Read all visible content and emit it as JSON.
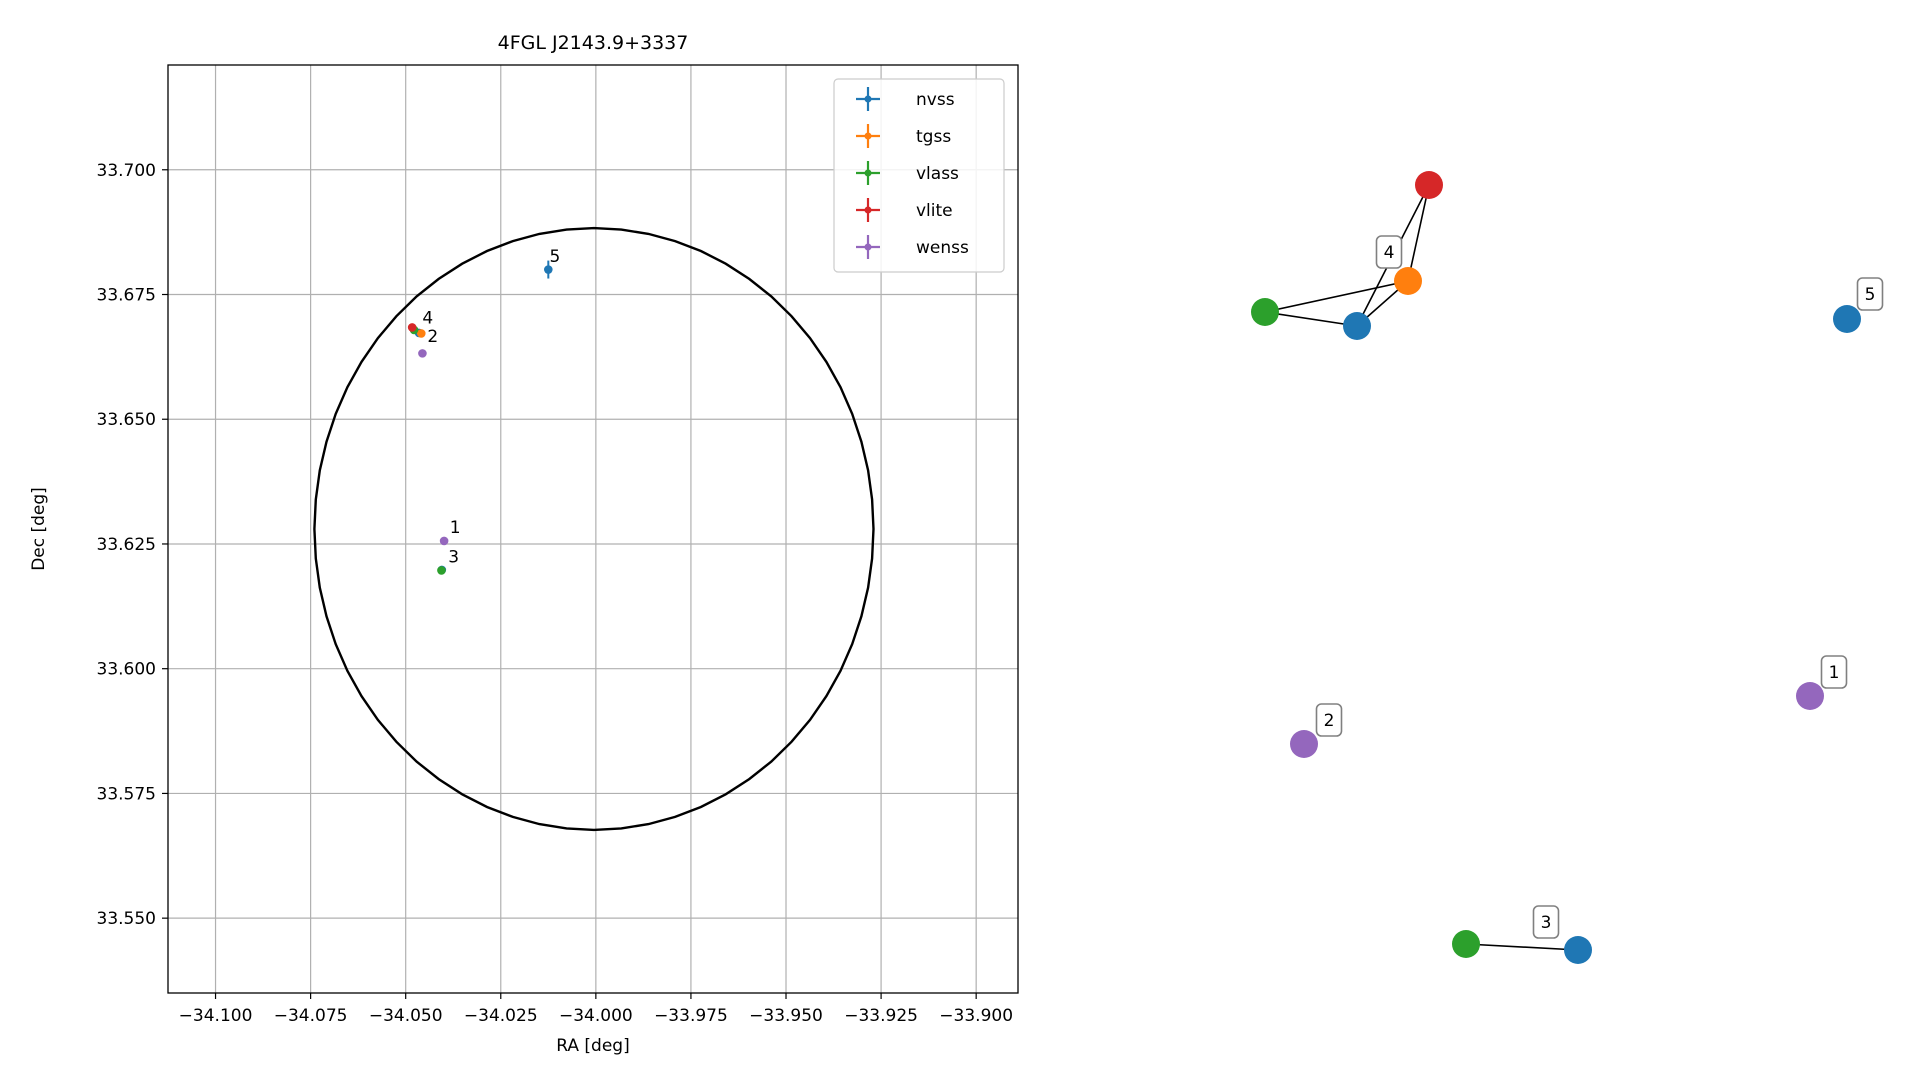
{
  "chart_data": [
    {
      "type": "scatter",
      "title": "4FGL J2143.9+3337",
      "xlabel": "RA [deg]",
      "ylabel": "Dec [deg]",
      "xlim": [
        -34.1125,
        -33.889
      ],
      "ylim": [
        33.535,
        33.721
      ],
      "xticks": [
        -34.1,
        -34.075,
        -34.05,
        -34.025,
        -34.0,
        -33.975,
        -33.95,
        -33.925,
        -33.9
      ],
      "xtick_labels": [
        "−34.100",
        "−34.075",
        "−34.050",
        "−34.025",
        "−34.000",
        "−33.975",
        "−33.950",
        "−33.925",
        "−33.900"
      ],
      "yticks": [
        33.55,
        33.575,
        33.6,
        33.625,
        33.65,
        33.675,
        33.7
      ],
      "ytick_labels": [
        "33.550",
        "33.575",
        "33.600",
        "33.625",
        "33.650",
        "33.675",
        "33.700"
      ],
      "grid": true,
      "legend_placement": "upper-right",
      "ellipse": {
        "center": [
          -34.0005,
          33.628
        ],
        "semi_axis_ra": 0.0735,
        "semi_axis_dec": 0.0603,
        "color": "#000000"
      },
      "series": [
        {
          "name": "nvss",
          "color": "#1f77b4",
          "points": [
            {
              "x": -34.0125,
              "y": 33.68,
              "xerr": 0.001,
              "yerr": 0.0018
            },
            {
              "x": -34.0465,
              "y": 33.6673
            },
            {
              "x": -34.0405,
              "y": 33.6198
            }
          ]
        },
        {
          "name": "tgss",
          "color": "#ff7f0e",
          "points": [
            {
              "x": -34.0459,
              "y": 33.6672
            }
          ]
        },
        {
          "name": "vlass",
          "color": "#2ca02c",
          "points": [
            {
              "x": -34.0478,
              "y": 33.6679
            },
            {
              "x": -34.0406,
              "y": 33.6197
            }
          ]
        },
        {
          "name": "vlite",
          "color": "#d62728",
          "points": [
            {
              "x": -34.0483,
              "y": 33.6684
            }
          ]
        },
        {
          "name": "wenss",
          "color": "#9467bd",
          "points": [
            {
              "x": -34.0456,
              "y": 33.6632
            },
            {
              "x": -34.0399,
              "y": 33.6256
            }
          ]
        }
      ],
      "annotations": [
        {
          "text": "5",
          "x": -34.0122,
          "y": 33.6815
        },
        {
          "text": "4",
          "x": -34.0456,
          "y": 33.6692
        },
        {
          "text": "2",
          "x": -34.0443,
          "y": 33.6655
        },
        {
          "text": "1",
          "x": -34.0384,
          "y": 33.6272
        },
        {
          "text": "3",
          "x": -34.0388,
          "y": 33.6213
        }
      ]
    },
    {
      "type": "network",
      "nodes": [
        {
          "id": "4-vlite",
          "group": "4",
          "color": "#d62728"
        },
        {
          "id": "4-tgss",
          "group": "4",
          "color": "#ff7f0e"
        },
        {
          "id": "4-vlass",
          "group": "4",
          "color": "#2ca02c"
        },
        {
          "id": "4-nvss",
          "group": "4",
          "color": "#1f77b4"
        },
        {
          "id": "5-nvss",
          "group": "5",
          "color": "#1f77b4"
        },
        {
          "id": "1-wenss",
          "group": "1",
          "color": "#9467bd"
        },
        {
          "id": "2-wenss",
          "group": "2",
          "color": "#9467bd"
        },
        {
          "id": "3-vlass",
          "group": "3",
          "color": "#2ca02c"
        },
        {
          "id": "3-nvss",
          "group": "3",
          "color": "#1f77b4"
        }
      ],
      "edges": [
        [
          "4-vlite",
          "4-tgss"
        ],
        [
          "4-vlite",
          "4-nvss"
        ],
        [
          "4-tgss",
          "4-vlass"
        ],
        [
          "4-tgss",
          "4-nvss"
        ],
        [
          "4-vlass",
          "4-nvss"
        ],
        [
          "3-vlass",
          "3-nvss"
        ]
      ],
      "labels": [
        {
          "text": "4",
          "node": "4-tgss"
        },
        {
          "text": "5",
          "node": "5-nvss"
        },
        {
          "text": "1",
          "node": "1-wenss"
        },
        {
          "text": "2",
          "node": "2-wenss"
        },
        {
          "text": "3",
          "node": "3-nvss"
        }
      ]
    }
  ]
}
